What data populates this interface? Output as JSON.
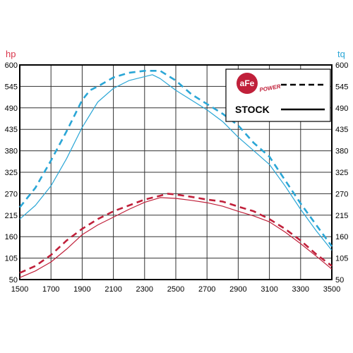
{
  "chart_data": {
    "type": "line",
    "left_unit": "hp",
    "right_unit": "tq",
    "x_ticks": [
      1500,
      1700,
      1900,
      2100,
      2300,
      2500,
      2700,
      2900,
      3100,
      3300,
      3500
    ],
    "y_ticks": [
      50,
      105,
      160,
      215,
      270,
      325,
      380,
      435,
      490,
      545,
      600
    ],
    "xlim": [
      1500,
      3500
    ],
    "ylim": [
      50,
      600
    ],
    "grid": true,
    "legend": {
      "position": "top-right",
      "entries": [
        {
          "label": "aFe POWER",
          "style": "dashed",
          "logo": true
        },
        {
          "label": "STOCK",
          "style": "solid"
        }
      ]
    },
    "colors": {
      "torque": "#2aa6d6",
      "horsepower": "#c0203a",
      "hp_axis": "#d9344a",
      "tq_axis": "#2aa6d6"
    },
    "series": [
      {
        "kind": "torque",
        "style": "dashed",
        "x": [
          1500,
          1600,
          1700,
          1800,
          1900,
          1950,
          2000,
          2100,
          2200,
          2300,
          2400,
          2500,
          2600,
          2700,
          2800,
          2900,
          3000,
          3100,
          3200,
          3300,
          3400,
          3500
        ],
        "y": [
          235,
          285,
          355,
          430,
          510,
          535,
          545,
          568,
          580,
          585,
          585,
          560,
          525,
          500,
          475,
          445,
          400,
          365,
          305,
          245,
          190,
          135
        ]
      },
      {
        "kind": "torque",
        "style": "solid",
        "x": [
          1500,
          1600,
          1700,
          1800,
          1900,
          2000,
          2100,
          2200,
          2300,
          2350,
          2400,
          2500,
          2600,
          2700,
          2800,
          2900,
          3000,
          3100,
          3200,
          3300,
          3400,
          3500
        ],
        "y": [
          205,
          240,
          290,
          360,
          440,
          505,
          540,
          560,
          570,
          575,
          565,
          535,
          510,
          485,
          455,
          415,
          380,
          345,
          290,
          230,
          175,
          125
        ]
      },
      {
        "kind": "horsepower",
        "style": "dashed",
        "x": [
          1500,
          1600,
          1700,
          1800,
          1900,
          2000,
          2100,
          2200,
          2300,
          2400,
          2450,
          2500,
          2600,
          2700,
          2800,
          2900,
          3000,
          3100,
          3200,
          3300,
          3400,
          3500
        ],
        "y": [
          67,
          85,
          113,
          150,
          180,
          205,
          225,
          240,
          255,
          265,
          270,
          268,
          262,
          255,
          250,
          237,
          225,
          205,
          180,
          150,
          115,
          85
        ]
      },
      {
        "kind": "horsepower",
        "style": "solid",
        "x": [
          1500,
          1600,
          1700,
          1800,
          1900,
          2000,
          2100,
          2200,
          2300,
          2400,
          2500,
          2600,
          2700,
          2800,
          2900,
          3000,
          3100,
          3200,
          3300,
          3400,
          3500
        ],
        "y": [
          55,
          72,
          95,
          128,
          165,
          190,
          210,
          230,
          248,
          260,
          258,
          253,
          247,
          238,
          225,
          213,
          198,
          172,
          142,
          110,
          77
        ]
      }
    ]
  }
}
